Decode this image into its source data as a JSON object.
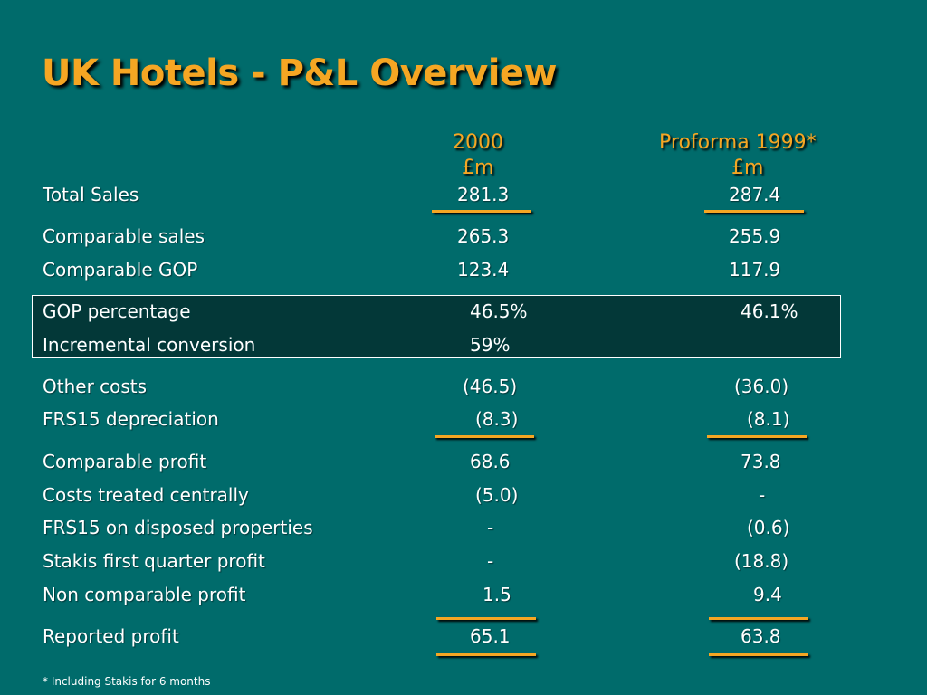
{
  "title": "UK Hotels - P&L Overview",
  "columns": [
    {
      "year": "2000",
      "unit": "£m"
    },
    {
      "year": "Proforma 1999*",
      "unit": "£m"
    }
  ],
  "rows": {
    "total_sales": {
      "label": "Total Sales",
      "v2000": "281.3",
      "v1999": "287.4"
    },
    "comparable_sales": {
      "label": "Comparable sales",
      "v2000": "265.3",
      "v1999": "255.9"
    },
    "comparable_gop": {
      "label": "Comparable GOP",
      "v2000": "123.4",
      "v1999": "117.9"
    },
    "gop_percentage": {
      "label": "GOP percentage",
      "v2000": "46.5%",
      "v1999": "46.1%"
    },
    "incremental_conversion": {
      "label": "Incremental conversion",
      "v2000": "59%",
      "v1999": ""
    },
    "other_costs": {
      "label": "Other costs",
      "v2000": "(46.5)",
      "v1999": "(36.0)"
    },
    "frs15_depreciation": {
      "label": "FRS15 depreciation",
      "v2000": "(8.3)",
      "v1999": "(8.1)"
    },
    "comparable_profit": {
      "label": "Comparable profit",
      "v2000": "68.6",
      "v1999": "73.8"
    },
    "costs_centrally": {
      "label": "Costs treated centrally",
      "v2000": "(5.0)",
      "v1999": "-"
    },
    "frs15_disposed": {
      "label": "FRS15 on disposed properties",
      "v2000": "-",
      "v1999": "(0.6)"
    },
    "stakis_profit": {
      "label": "Stakis first quarter profit",
      "v2000": "-",
      "v1999": "(18.8)"
    },
    "non_comparable": {
      "label": "Non comparable profit",
      "v2000": "1.5",
      "v1999": "9.4"
    },
    "reported_profit": {
      "label": "Reported profit",
      "v2000": "65.1",
      "v1999": "63.8"
    }
  },
  "footnote": "* Including Stakis for 6 months",
  "colors": {
    "background": "#006B6B",
    "accent": "#F5A623",
    "box": "#033838",
    "text": "#FFFFFF"
  }
}
